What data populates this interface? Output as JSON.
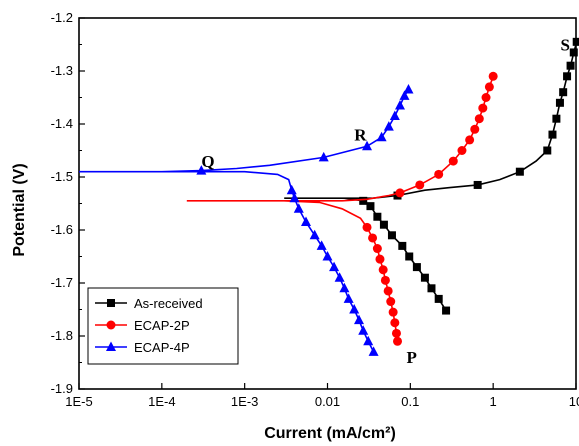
{
  "chart_data": {
    "type": "line",
    "xlabel": "Current (mA/cm²)",
    "ylabel": "Potential (V)",
    "x_scale": "log",
    "xlim": [
      1e-05,
      10
    ],
    "ylim": [
      -1.9,
      -1.2
    ],
    "x_ticks": [
      {
        "value": 1e-05,
        "label": "1E-5"
      },
      {
        "value": 0.0001,
        "label": "1E-4"
      },
      {
        "value": 0.001,
        "label": "1E-3"
      },
      {
        "value": 0.01,
        "label": "0.01"
      },
      {
        "value": 0.1,
        "label": "0.1"
      },
      {
        "value": 1,
        "label": "1"
      },
      {
        "value": 10,
        "label": "10"
      }
    ],
    "y_ticks": [
      {
        "value": -1.2,
        "label": "-1.2"
      },
      {
        "value": -1.3,
        "label": "-1.3"
      },
      {
        "value": -1.4,
        "label": "-1.4"
      },
      {
        "value": -1.5,
        "label": "-1.5"
      },
      {
        "value": -1.6,
        "label": "-1.6"
      },
      {
        "value": -1.7,
        "label": "-1.7"
      },
      {
        "value": -1.8,
        "label": "-1.8"
      },
      {
        "value": -1.9,
        "label": "-1.9"
      }
    ],
    "grid": false,
    "legend_position": "bottom-left",
    "annotations": [
      {
        "text": "S",
        "x": 6.5,
        "y": -1.25
      },
      {
        "text": "R",
        "x": 0.021,
        "y": -1.42
      },
      {
        "text": "Q",
        "x": 0.0003,
        "y": -1.47
      },
      {
        "text": "P",
        "x": 0.09,
        "y": -1.84
      }
    ],
    "series": [
      {
        "name": "As-received",
        "color": "#000000",
        "marker": "square",
        "points": [
          [
            0.27,
            -1.752
          ],
          [
            0.22,
            -1.73
          ],
          [
            0.18,
            -1.71
          ],
          [
            0.15,
            -1.69
          ],
          [
            0.12,
            -1.67
          ],
          [
            0.097,
            -1.65
          ],
          [
            0.08,
            -1.63
          ],
          [
            0.06,
            -1.61
          ],
          [
            0.048,
            -1.59
          ],
          [
            0.04,
            -1.575
          ],
          [
            0.033,
            -1.555
          ],
          [
            0.027,
            -1.545
          ],
          [
            0.016,
            -1.54
          ],
          [
            0.008,
            -1.54
          ],
          [
            0.004,
            -1.54
          ],
          [
            0.003,
            -1.54
          ],
          [
            0.004,
            -1.54
          ],
          [
            0.008,
            -1.54
          ],
          [
            0.016,
            -1.54
          ],
          [
            0.035,
            -1.54
          ],
          [
            0.07,
            -1.535
          ],
          [
            0.15,
            -1.525
          ],
          [
            0.3,
            -1.52
          ],
          [
            0.65,
            -1.515
          ],
          [
            1.2,
            -1.505
          ],
          [
            2.1,
            -1.49
          ],
          [
            3.3,
            -1.47
          ],
          [
            4.5,
            -1.45
          ],
          [
            5.2,
            -1.42
          ],
          [
            5.8,
            -1.39
          ],
          [
            6.4,
            -1.36
          ],
          [
            7.0,
            -1.34
          ],
          [
            7.8,
            -1.31
          ],
          [
            8.6,
            -1.29
          ],
          [
            9.4,
            -1.265
          ],
          [
            10.2,
            -1.245
          ]
        ],
        "marker_points": [
          [
            0.27,
            -1.752
          ],
          [
            0.22,
            -1.73
          ],
          [
            0.18,
            -1.71
          ],
          [
            0.15,
            -1.69
          ],
          [
            0.12,
            -1.67
          ],
          [
            0.097,
            -1.65
          ],
          [
            0.08,
            -1.63
          ],
          [
            0.06,
            -1.61
          ],
          [
            0.048,
            -1.59
          ],
          [
            0.04,
            -1.575
          ],
          [
            0.033,
            -1.555
          ],
          [
            0.027,
            -1.545
          ],
          [
            0.07,
            -1.535
          ],
          [
            0.65,
            -1.515
          ],
          [
            2.1,
            -1.49
          ],
          [
            4.5,
            -1.45
          ],
          [
            5.2,
            -1.42
          ],
          [
            5.8,
            -1.39
          ],
          [
            6.4,
            -1.36
          ],
          [
            7.0,
            -1.34
          ],
          [
            7.8,
            -1.31
          ],
          [
            8.6,
            -1.29
          ],
          [
            9.4,
            -1.265
          ],
          [
            10.2,
            -1.245
          ]
        ]
      },
      {
        "name": "ECAP-2P",
        "color": "#ff0000",
        "marker": "circle",
        "points": [
          [
            0.07,
            -1.81
          ],
          [
            0.068,
            -1.795
          ],
          [
            0.065,
            -1.775
          ],
          [
            0.062,
            -1.755
          ],
          [
            0.058,
            -1.735
          ],
          [
            0.054,
            -1.715
          ],
          [
            0.05,
            -1.695
          ],
          [
            0.047,
            -1.675
          ],
          [
            0.043,
            -1.655
          ],
          [
            0.04,
            -1.635
          ],
          [
            0.035,
            -1.615
          ],
          [
            0.03,
            -1.595
          ],
          [
            0.025,
            -1.578
          ],
          [
            0.015,
            -1.56
          ],
          [
            0.008,
            -1.548
          ],
          [
            0.003,
            -1.545
          ],
          [
            0.001,
            -1.545
          ],
          [
            0.0003,
            -1.545
          ],
          [
            0.0002,
            -1.545
          ],
          [
            0.0003,
            -1.545
          ],
          [
            0.001,
            -1.545
          ],
          [
            0.005,
            -1.545
          ],
          [
            0.015,
            -1.545
          ],
          [
            0.03,
            -1.542
          ],
          [
            0.055,
            -1.535
          ],
          [
            0.075,
            -1.53
          ],
          [
            0.13,
            -1.515
          ],
          [
            0.22,
            -1.495
          ],
          [
            0.33,
            -1.47
          ],
          [
            0.42,
            -1.45
          ],
          [
            0.52,
            -1.43
          ],
          [
            0.6,
            -1.41
          ],
          [
            0.68,
            -1.39
          ],
          [
            0.75,
            -1.37
          ],
          [
            0.82,
            -1.35
          ],
          [
            0.9,
            -1.33
          ],
          [
            1.0,
            -1.31
          ]
        ],
        "marker_points": [
          [
            0.07,
            -1.81
          ],
          [
            0.068,
            -1.795
          ],
          [
            0.065,
            -1.775
          ],
          [
            0.062,
            -1.755
          ],
          [
            0.058,
            -1.735
          ],
          [
            0.054,
            -1.715
          ],
          [
            0.05,
            -1.695
          ],
          [
            0.047,
            -1.675
          ],
          [
            0.043,
            -1.655
          ],
          [
            0.04,
            -1.635
          ],
          [
            0.035,
            -1.615
          ],
          [
            0.03,
            -1.595
          ],
          [
            0.075,
            -1.53
          ],
          [
            0.13,
            -1.515
          ],
          [
            0.22,
            -1.495
          ],
          [
            0.33,
            -1.47
          ],
          [
            0.42,
            -1.45
          ],
          [
            0.52,
            -1.43
          ],
          [
            0.6,
            -1.41
          ],
          [
            0.68,
            -1.39
          ],
          [
            0.75,
            -1.37
          ],
          [
            0.82,
            -1.35
          ],
          [
            0.9,
            -1.33
          ],
          [
            1.0,
            -1.31
          ]
        ]
      },
      {
        "name": "ECAP-4P",
        "color": "#0000ff",
        "marker": "triangle",
        "points": [
          [
            0.036,
            -1.83
          ],
          [
            0.031,
            -1.81
          ],
          [
            0.027,
            -1.79
          ],
          [
            0.024,
            -1.77
          ],
          [
            0.021,
            -1.75
          ],
          [
            0.018,
            -1.73
          ],
          [
            0.016,
            -1.71
          ],
          [
            0.014,
            -1.69
          ],
          [
            0.012,
            -1.67
          ],
          [
            0.01,
            -1.65
          ],
          [
            0.0085,
            -1.63
          ],
          [
            0.007,
            -1.61
          ],
          [
            0.0055,
            -1.585
          ],
          [
            0.0045,
            -1.56
          ],
          [
            0.004,
            -1.54
          ],
          [
            0.0037,
            -1.525
          ],
          [
            0.0034,
            -1.505
          ],
          [
            0.0025,
            -1.495
          ],
          [
            0.001,
            -1.49
          ],
          [
            0.0003,
            -1.49
          ],
          [
            0.0001,
            -1.49
          ],
          [
            1e-05,
            -1.49
          ],
          [
            0.0001,
            -1.49
          ],
          [
            0.0003,
            -1.488
          ],
          [
            0.0008,
            -1.484
          ],
          [
            0.002,
            -1.478
          ],
          [
            0.009,
            -1.463
          ],
          [
            0.03,
            -1.442
          ],
          [
            0.045,
            -1.425
          ],
          [
            0.055,
            -1.405
          ],
          [
            0.065,
            -1.385
          ],
          [
            0.075,
            -1.365
          ],
          [
            0.085,
            -1.347
          ],
          [
            0.095,
            -1.335
          ]
        ],
        "marker_points": [
          [
            0.036,
            -1.83
          ],
          [
            0.031,
            -1.81
          ],
          [
            0.027,
            -1.79
          ],
          [
            0.024,
            -1.77
          ],
          [
            0.021,
            -1.75
          ],
          [
            0.018,
            -1.73
          ],
          [
            0.016,
            -1.71
          ],
          [
            0.014,
            -1.69
          ],
          [
            0.012,
            -1.67
          ],
          [
            0.01,
            -1.65
          ],
          [
            0.0085,
            -1.63
          ],
          [
            0.007,
            -1.61
          ],
          [
            0.0055,
            -1.585
          ],
          [
            0.0045,
            -1.56
          ],
          [
            0.004,
            -1.54
          ],
          [
            0.0037,
            -1.525
          ],
          [
            0.0003,
            -1.488
          ],
          [
            0.009,
            -1.463
          ],
          [
            0.03,
            -1.442
          ],
          [
            0.045,
            -1.425
          ],
          [
            0.055,
            -1.405
          ],
          [
            0.065,
            -1.385
          ],
          [
            0.075,
            -1.365
          ],
          [
            0.085,
            -1.347
          ],
          [
            0.095,
            -1.335
          ]
        ]
      }
    ]
  }
}
